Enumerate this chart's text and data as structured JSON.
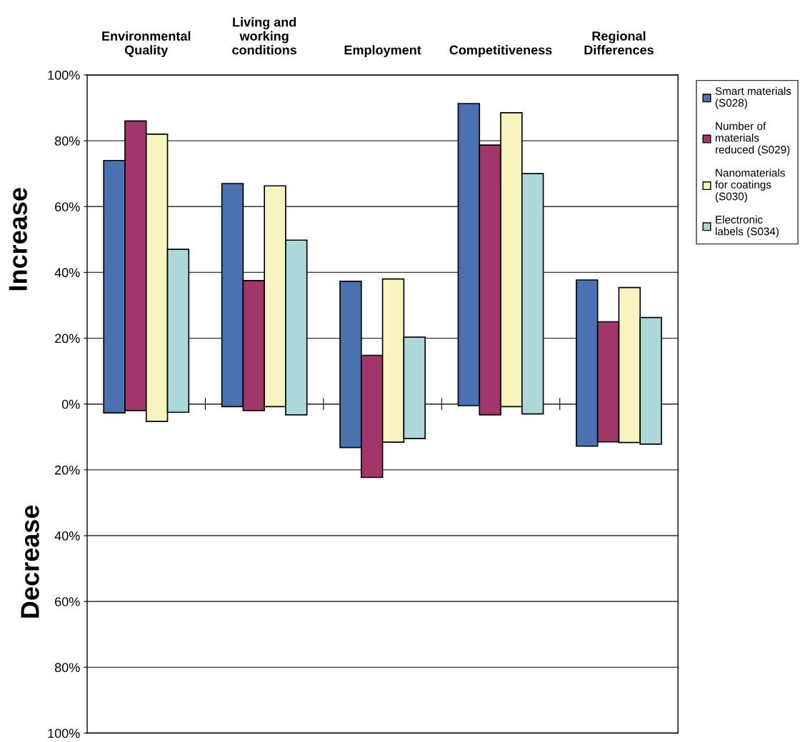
{
  "chart_data": {
    "type": "bar",
    "categories": [
      "Environmental\nQuality",
      "Living and\nworking\nconditions",
      "Employment",
      "Competitiveness",
      "Regional\nDifferences"
    ],
    "series": [
      {
        "name": "Smart materials\n(S028)",
        "color": "#4a72b0",
        "base": [
          -2.7,
          -0.8,
          -13.2,
          -0.5,
          -12.8
        ],
        "values": [
          76.7,
          67.8,
          50.5,
          91.8,
          50.5
        ]
      },
      {
        "name": "Number of\nmaterials\nreduced (S029)",
        "color": "#a0366a",
        "base": [
          -2,
          -2,
          -22.3,
          -3.3,
          -11.5
        ],
        "values": [
          88,
          39.5,
          37.1,
          82,
          36.5
        ]
      },
      {
        "name": "Nanomaterials\nfor coatings\n(S030)",
        "color": "#f7f4c0",
        "base": [
          -5.3,
          -0.8,
          -11.6,
          -0.8,
          -11.7
        ],
        "values": [
          87.3,
          67.1,
          49.6,
          89.3,
          47.1
        ]
      },
      {
        "name": "Electronic\nlabels (S034)",
        "color": "#acd8d9",
        "base": [
          -2.5,
          -3.3,
          -10.5,
          -3,
          -12.2
        ],
        "values": [
          49.5,
          53.1,
          30.8,
          73,
          38.5
        ]
      }
    ],
    "ylabel": "Increase",
    "annotations": [
      "Decrease"
    ],
    "ylim": [
      -100,
      100
    ],
    "yticks": [
      {
        "value": -100,
        "label": "100%"
      },
      {
        "value": -80,
        "label": "80%"
      },
      {
        "value": -60,
        "label": "60%"
      },
      {
        "value": -40,
        "label": "40%"
      },
      {
        "value": -20,
        "label": "20%"
      },
      {
        "value": 0,
        "label": "0%"
      },
      {
        "value": 20,
        "label": "20%"
      },
      {
        "value": 40,
        "label": "40%"
      },
      {
        "value": 60,
        "label": "60%"
      },
      {
        "value": 80,
        "label": "80%"
      },
      {
        "value": 100,
        "label": "100%"
      }
    ],
    "grid": "y",
    "legend": "right"
  }
}
